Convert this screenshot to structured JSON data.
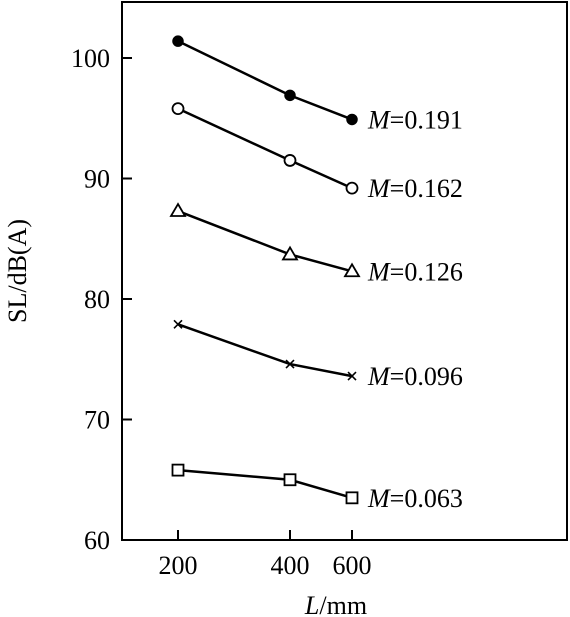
{
  "chart_data": {
    "type": "line",
    "xlabel_var": "L",
    "xlabel_unit": "/mm",
    "ylabel": "SL/dB(A)",
    "x_ticks": [
      "200",
      "400",
      "600"
    ],
    "y_ticks": [
      "60",
      "70",
      "80",
      "90",
      "100"
    ],
    "ylim": [
      60,
      105
    ],
    "series": [
      {
        "label_var": "M",
        "label_value": "=0.191",
        "marker": "filled-circle",
        "points": [
          {
            "x": "200",
            "y": 101.4
          },
          {
            "x": "400",
            "y": 96.9
          },
          {
            "x": "600",
            "y": 94.9
          }
        ]
      },
      {
        "label_var": "M",
        "label_value": "=0.162",
        "marker": "open-circle",
        "points": [
          {
            "x": "200",
            "y": 95.8
          },
          {
            "x": "400",
            "y": 91.5
          },
          {
            "x": "600",
            "y": 89.2
          }
        ]
      },
      {
        "label_var": "M",
        "label_value": "=0.126",
        "marker": "open-triangle",
        "points": [
          {
            "x": "200",
            "y": 87.3
          },
          {
            "x": "400",
            "y": 83.7
          },
          {
            "x": "600",
            "y": 82.3
          }
        ]
      },
      {
        "label_var": "M",
        "label_value": "=0.096",
        "marker": "cross",
        "points": [
          {
            "x": "200",
            "y": 77.9
          },
          {
            "x": "400",
            "y": 74.6
          },
          {
            "x": "600",
            "y": 73.6
          }
        ]
      },
      {
        "label_var": "M",
        "label_value": "=0.063",
        "marker": "open-square",
        "points": [
          {
            "x": "200",
            "y": 65.8
          },
          {
            "x": "400",
            "y": 65.0
          },
          {
            "x": "600",
            "y": 63.5
          }
        ]
      }
    ]
  }
}
